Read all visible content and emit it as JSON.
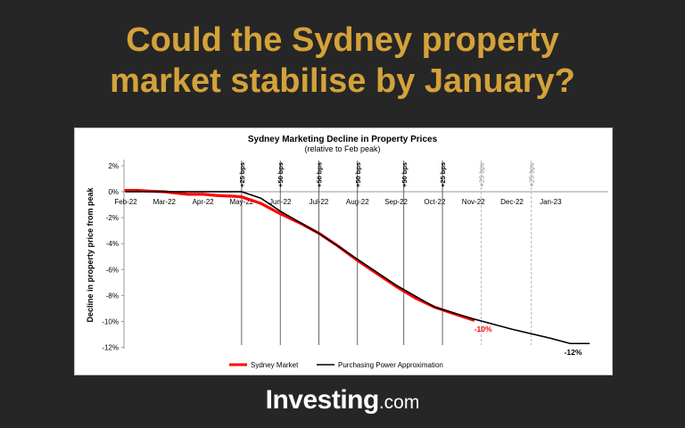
{
  "headline": {
    "line1": "Could the Sydney property",
    "line2": "market stabilise by January?"
  },
  "brand": {
    "name": "Investing",
    "suffix": ".com"
  },
  "chart_data": {
    "type": "line",
    "title": "Sydney Marketing Decline in Property Prices",
    "subtitle": "(relative to Feb peak)",
    "ylabel": "Decline in property price from peak",
    "xlabel": "",
    "x_ticks": [
      "Feb-22",
      "Mar-22",
      "Apr-22",
      "May-22",
      "Jun-22",
      "Jul-22",
      "Aug-22",
      "Sep-22",
      "Oct-22",
      "Nov-22",
      "Dec-22",
      "Jan-23"
    ],
    "y_ticks": [
      "2%",
      "0%",
      "-2%",
      "-4%",
      "-6%",
      "-8%",
      "-10%",
      "-12%"
    ],
    "ylim": [
      -12,
      2
    ],
    "grid": false,
    "legend_position": "bottom",
    "rate_hikes": [
      {
        "x": 3.0,
        "label": "+25 bps",
        "style": "actual"
      },
      {
        "x": 4.0,
        "label": "+50 bps",
        "style": "actual"
      },
      {
        "x": 5.0,
        "label": "+50 bps",
        "style": "actual"
      },
      {
        "x": 6.0,
        "label": "+50 bps",
        "style": "actual"
      },
      {
        "x": 7.2,
        "label": "+50 bps",
        "style": "actual"
      },
      {
        "x": 8.2,
        "label": "+25 bps",
        "style": "actual"
      },
      {
        "x": 9.2,
        "label": "+25 bps",
        "style": "expected"
      },
      {
        "x": 10.5,
        "label": "+25 bps",
        "style": "expected"
      }
    ],
    "series": [
      {
        "name": "Sydney Market",
        "color": "#ff0000",
        "end_label": "-10%",
        "x": [
          0,
          0.3,
          0.6,
          1.0,
          1.3,
          1.6,
          2.0,
          2.4,
          2.8,
          3.0,
          3.5,
          4.0,
          4.5,
          5.0,
          5.5,
          6.0,
          6.5,
          7.0,
          7.5,
          8.0,
          8.5,
          9.0
        ],
        "y": [
          0.1,
          0.1,
          0.05,
          0.0,
          -0.1,
          -0.2,
          -0.2,
          -0.3,
          -0.35,
          -0.4,
          -0.9,
          -1.7,
          -2.4,
          -3.2,
          -4.2,
          -5.3,
          -6.3,
          -7.3,
          -8.2,
          -8.9,
          -9.4,
          -9.9
        ]
      },
      {
        "name": "Purchasing Power Approximation",
        "color": "#000000",
        "end_label": "-12%",
        "x": [
          0,
          1,
          2,
          3,
          3.5,
          4,
          5,
          6,
          7,
          8,
          9,
          10,
          11,
          11.5,
          12
        ],
        "y": [
          0,
          0,
          0,
          0,
          -0.5,
          -1.5,
          -3.2,
          -5.2,
          -7.2,
          -8.9,
          -9.8,
          -10.6,
          -11.3,
          -11.7,
          -11.7
        ]
      }
    ]
  }
}
